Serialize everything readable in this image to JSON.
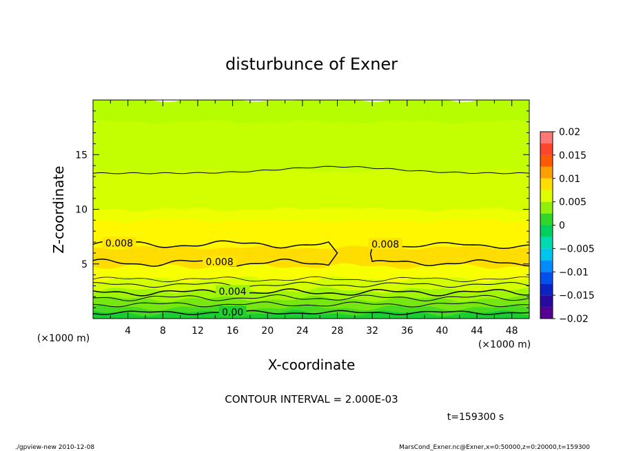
{
  "chart_data": {
    "type": "heatmap",
    "title": "disturbunce of Exner",
    "xlabel": "X-coordinate",
    "ylabel": "Z-coordinate",
    "x_unit": "(×1000 m)",
    "x_unit_right": "(×1000 m)",
    "xlim": [
      0,
      50
    ],
    "ylim": [
      0,
      20
    ],
    "x_ticks": [
      4,
      8,
      12,
      16,
      20,
      24,
      28,
      32,
      36,
      40,
      44,
      48
    ],
    "y_ticks": [
      5,
      10,
      15
    ],
    "colorbar": {
      "ticks": [
        0.02,
        0.015,
        0.01,
        0.005,
        0,
        -0.005,
        -0.01,
        -0.015,
        -0.02
      ],
      "tick_labels": [
        "0.02",
        "0.015",
        "0.01",
        "0.005",
        "0",
        "−0.005",
        "−0.01",
        "−0.015",
        "−0.02"
      ],
      "range": [
        -0.02,
        0.02
      ]
    },
    "contour_labels": [
      {
        "text": "0.008",
        "value": 0.008,
        "x": 3,
        "z": 6.9
      },
      {
        "text": "0.008",
        "value": 0.008,
        "x": 14.5,
        "z": 5.2
      },
      {
        "text": "0.008",
        "value": 0.008,
        "x": 33.5,
        "z": 6.8
      },
      {
        "text": "0.004",
        "value": 0.004,
        "x": 16,
        "z": 2.5
      },
      {
        "text": "0.00",
        "value": 0.0,
        "x": 16,
        "z": 0.6
      }
    ],
    "layers": [
      {
        "z_top": 20,
        "value": 0.0048
      },
      {
        "z_top": 18,
        "value": 0.0052
      },
      {
        "z_top": 13.5,
        "value": 0.0058
      },
      {
        "z_top": 10,
        "value": 0.0068
      },
      {
        "z_top": 9,
        "value": 0.0078
      },
      {
        "z_top": 6.5,
        "value": 0.0088
      },
      {
        "z_top": 4.8,
        "value": 0.0072
      },
      {
        "z_top": 3.6,
        "value": 0.0058
      },
      {
        "z_top": 2.6,
        "value": 0.0042
      },
      {
        "z_top": 1.8,
        "value": 0.003
      },
      {
        "z_top": 1.0,
        "value": 0.0018
      },
      {
        "z_top": 0.5,
        "value": 0.0006
      }
    ],
    "contour_interval_text": "CONTOUR INTERVAL = 2.000E-03",
    "time_text": "t=159300 s"
  },
  "footer": {
    "left": "./gpview-new   2010-12-08",
    "right": "MarsCond_Exner.nc@Exner,x=0:50000,z=0:20000,t=159300"
  }
}
